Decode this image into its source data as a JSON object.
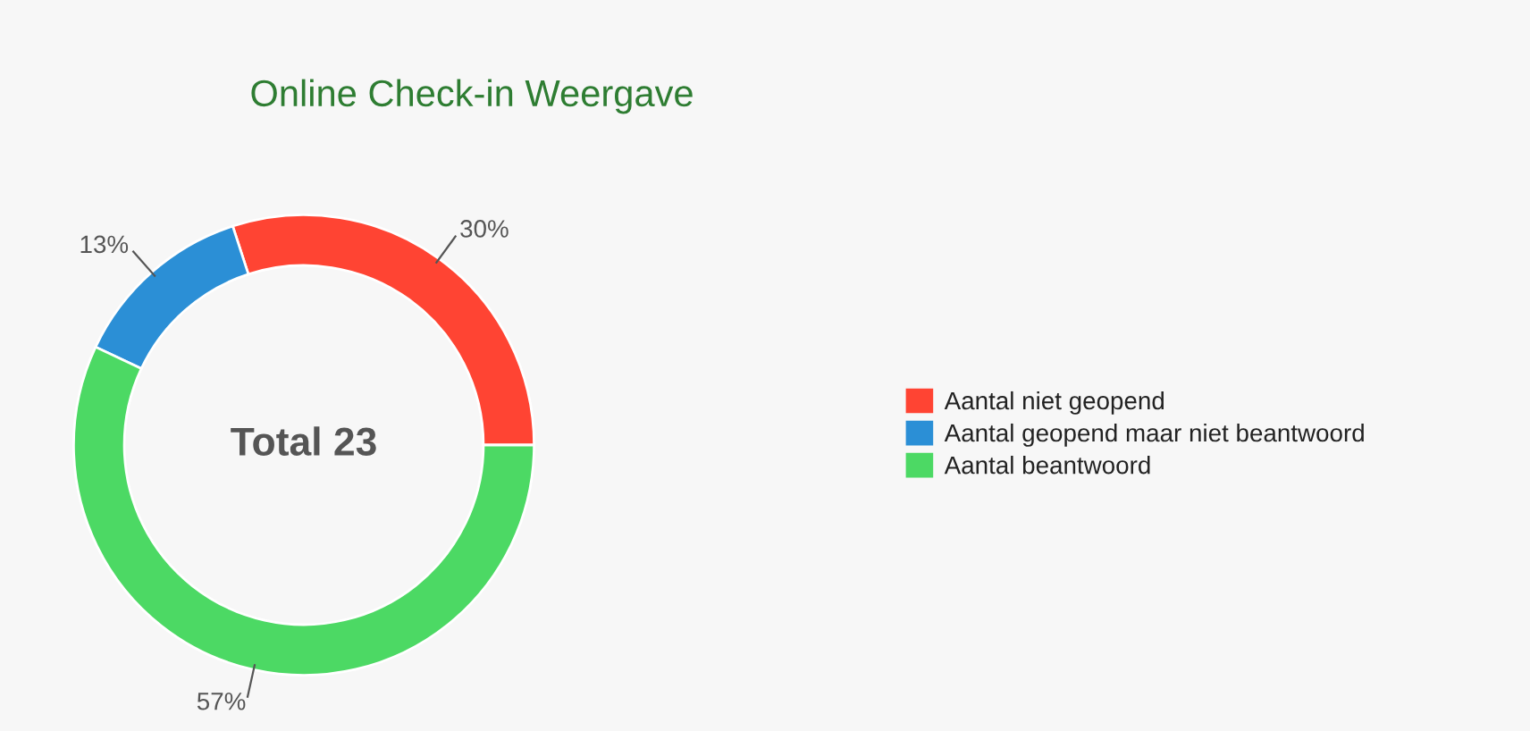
{
  "chart_data": {
    "type": "donut",
    "title": "Online Check-in Weergave",
    "categories": [
      "Aantal niet geopend",
      "Aantal geopend maar niet beantwoord",
      "Aantal beantwoord"
    ],
    "values": [
      30,
      13,
      57
    ],
    "colors": [
      "#ff4433",
      "#2b8fd6",
      "#4cd964"
    ],
    "value_labels": [
      "30%",
      "13%",
      "57%"
    ],
    "annotations": [
      "Total 23"
    ],
    "legend": "right"
  }
}
